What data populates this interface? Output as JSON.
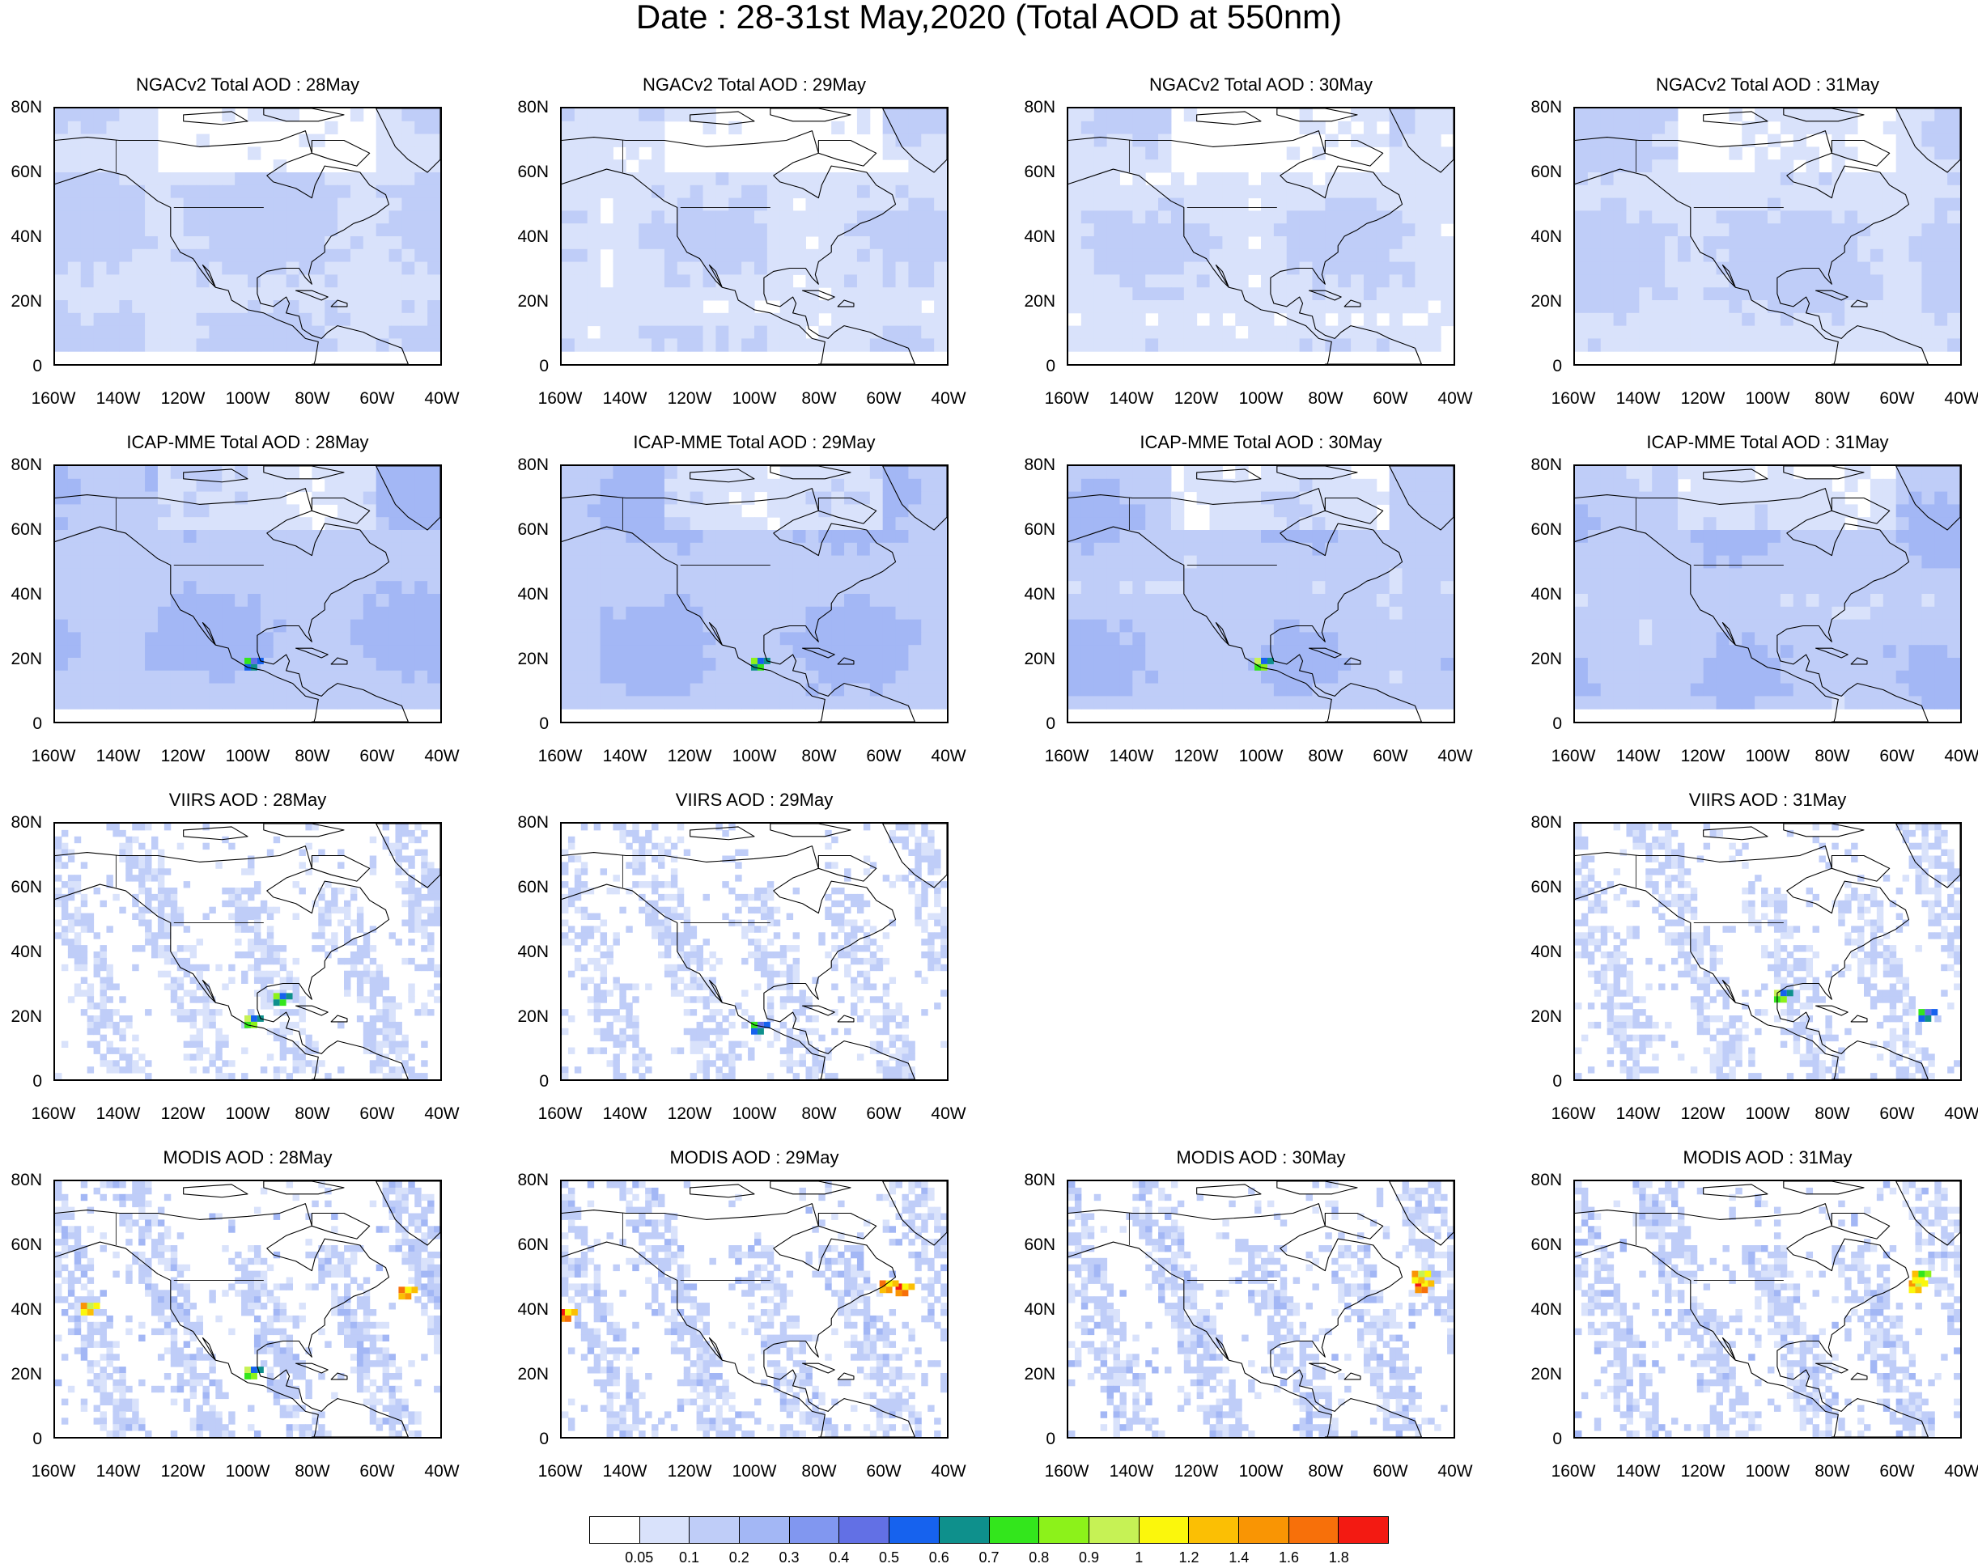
{
  "title": "Date : 28-31st May,2020 (Total AOD at 550nm)",
  "axes": {
    "lat_labels": [
      "80N",
      "60N",
      "40N",
      "20N",
      "0"
    ],
    "lon_labels": [
      "160W",
      "140W",
      "120W",
      "100W",
      "80W",
      "60W",
      "40W"
    ],
    "lat_range": [
      0,
      80
    ],
    "lon_range": [
      -160,
      -40
    ]
  },
  "panels": [
    {
      "title": "NGACv2 Total AOD : 28May",
      "style": "smooth",
      "level": 0.12,
      "hotspots": []
    },
    {
      "title": "NGACv2 Total AOD : 29May",
      "style": "smooth",
      "level": 0.1,
      "hotspots": []
    },
    {
      "title": "NGACv2 Total AOD : 30May",
      "style": "smooth",
      "level": 0.1,
      "hotspots": []
    },
    {
      "title": "NGACv2 Total AOD : 31May",
      "style": "smooth",
      "level": 0.12,
      "hotspots": []
    },
    {
      "title": "ICAP-MME Total AOD : 28May",
      "style": "smooth",
      "level": 0.2,
      "hotspots": [
        {
          "lon": -98,
          "lat": 18,
          "aod": 0.7
        }
      ]
    },
    {
      "title": "ICAP-MME Total AOD : 29May",
      "style": "smooth",
      "level": 0.2,
      "hotspots": [
        {
          "lon": -98,
          "lat": 18,
          "aod": 0.8
        }
      ]
    },
    {
      "title": "ICAP-MME Total AOD : 30May",
      "style": "smooth",
      "level": 0.18,
      "hotspots": [
        {
          "lon": -99,
          "lat": 18,
          "aod": 0.9
        }
      ]
    },
    {
      "title": "ICAP-MME Total AOD : 31May",
      "style": "smooth",
      "level": 0.18,
      "hotspots": []
    },
    {
      "title": "VIIRS AOD : 28May",
      "style": "swath",
      "level": 0.1,
      "hotspots": [
        {
          "lon": -98,
          "lat": 18,
          "aod": 0.9
        },
        {
          "lon": -89,
          "lat": 25,
          "aod": 0.8
        }
      ]
    },
    {
      "title": "VIIRS AOD : 29May",
      "style": "swath",
      "level": 0.1,
      "hotspots": [
        {
          "lon": -98,
          "lat": 16,
          "aod": 0.7
        }
      ]
    },
    null,
    {
      "title": "VIIRS AOD : 31May",
      "style": "swath",
      "level": 0.1,
      "hotspots": [
        {
          "lon": -95,
          "lat": 26,
          "aod": 0.9
        },
        {
          "lon": -50,
          "lat": 20,
          "aod": 0.7
        }
      ]
    },
    {
      "title": "MODIS AOD : 28May",
      "style": "swath",
      "level": 0.12,
      "hotspots": [
        {
          "lon": -98,
          "lat": 20,
          "aod": 0.9
        },
        {
          "lon": -149,
          "lat": 40,
          "aod": 1.4
        },
        {
          "lon": -50,
          "lat": 45,
          "aod": 1.6
        }
      ]
    },
    {
      "title": "MODIS AOD : 29May",
      "style": "swath",
      "level": 0.12,
      "hotspots": [
        {
          "lon": -53,
          "lat": 46,
          "aod": 1.8
        },
        {
          "lon": -58,
          "lat": 47,
          "aod": 1.6
        },
        {
          "lon": -158,
          "lat": 38,
          "aod": 1.8
        }
      ]
    },
    {
      "title": "MODIS AOD : 30May",
      "style": "swath",
      "level": 0.12,
      "hotspots": [
        {
          "lon": -49,
          "lat": 47,
          "aod": 1.8
        },
        {
          "lon": -50,
          "lat": 50,
          "aod": 1.4
        }
      ]
    },
    {
      "title": "MODIS AOD : 31May",
      "style": "swath",
      "level": 0.12,
      "hotspots": [
        {
          "lon": -53,
          "lat": 47,
          "aod": 1.4
        },
        {
          "lon": -52,
          "lat": 50,
          "aod": 1.2
        }
      ]
    }
  ],
  "colorbar": {
    "labels": [
      "0.05",
      "0.1",
      "0.2",
      "0.3",
      "0.4",
      "0.5",
      "0.6",
      "0.7",
      "0.8",
      "0.9",
      "1",
      "1.2",
      "1.4",
      "1.6",
      "1.8"
    ],
    "colors": [
      "#ffffff",
      "#d9e2fb",
      "#bfcdf8",
      "#a3b7f5",
      "#8197f0",
      "#6270e5",
      "#1662ee",
      "#0e908c",
      "#33e61c",
      "#8cf21a",
      "#c6f255",
      "#fbf70c",
      "#fbbf04",
      "#f99504",
      "#f7700a",
      "#f31a12"
    ]
  }
}
